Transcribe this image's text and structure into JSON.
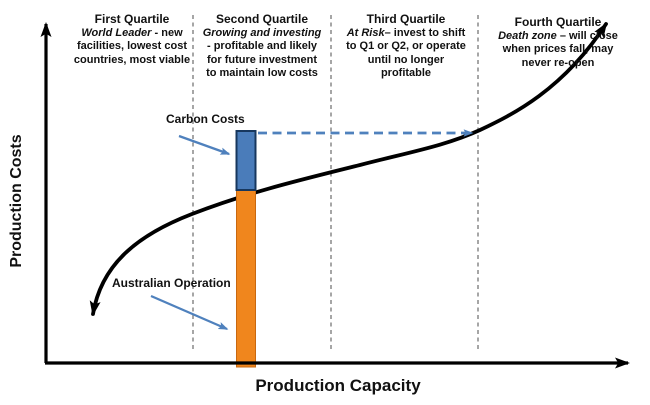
{
  "axes": {
    "y_label": "Production Costs",
    "x_label": "Production Capacity"
  },
  "quartiles": [
    {
      "title": "First Quartile",
      "lines": [
        [
          {
            "t": "World Leader",
            "i": true
          },
          {
            "t": " - new",
            "i": false
          }
        ],
        [
          {
            "t": "facilities, lowest cost",
            "i": false
          }
        ],
        [
          {
            "t": "countries, most viable",
            "i": false
          }
        ]
      ]
    },
    {
      "title": "Second Quartile",
      "lines": [
        [
          {
            "t": "Growing and investing",
            "i": true
          }
        ],
        [
          {
            "t": "- profitable and likely",
            "i": false
          }
        ],
        [
          {
            "t": "for future investment",
            "i": false
          }
        ],
        [
          {
            "t": "to maintain low costs",
            "i": false
          }
        ]
      ]
    },
    {
      "title": "Third Quartile",
      "lines": [
        [
          {
            "t": "At Risk",
            "i": true
          },
          {
            "t": "– invest to shift",
            "i": false
          }
        ],
        [
          {
            "t": "to Q1 or Q2, or operate",
            "i": false
          }
        ],
        [
          {
            "t": "until no longer",
            "i": false
          }
        ],
        [
          {
            "t": "profitable",
            "i": false
          }
        ]
      ]
    },
    {
      "title": "Fourth Quartile",
      "lines": [
        [
          {
            "t": "Death zone",
            "i": true
          },
          {
            "t": " – will close",
            "i": false
          }
        ],
        [
          {
            "t": "when prices fall, may",
            "i": false
          }
        ],
        [
          {
            "t": "never re-open",
            "i": false
          }
        ]
      ]
    }
  ],
  "annotations": {
    "carbon_costs": "Carbon Costs",
    "australian_operation": "Australian Operation"
  },
  "colors": {
    "curve": "#000000",
    "axis": "#000000",
    "divider": "#808080",
    "carbon-bar": "#4A7CBA",
    "carbon-bar-border": "#17375E",
    "operation-bar": "#F0861D",
    "operation-bar-border": "#C9680F",
    "annotation-arrow": "#4F81BD",
    "carbon-dashed": "#4F81BD",
    "text": "#111111"
  }
}
